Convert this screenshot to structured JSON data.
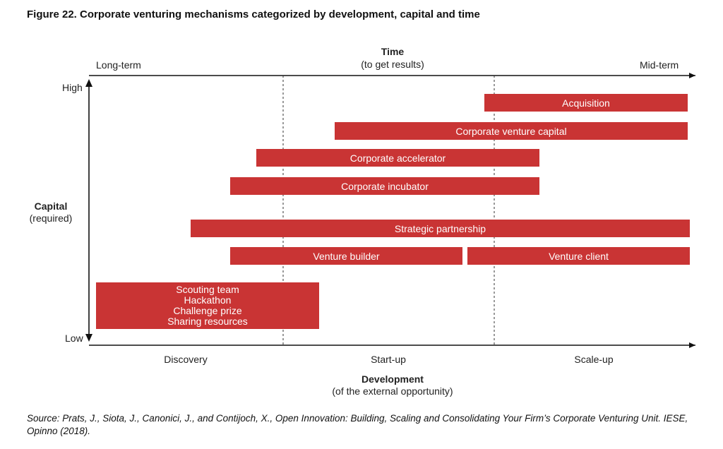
{
  "figure_title": "Figure 22. Corporate venturing mechanisms categorized by development, capital and time",
  "time_axis": {
    "title": "Time",
    "subtitle": "(to get results)",
    "left_label": "Long-term",
    "right_label": "Mid-term"
  },
  "capital_axis": {
    "title": "Capital",
    "subtitle": "(required)",
    "high_label": "High",
    "low_label": "Low"
  },
  "development_axis": {
    "title": "Development",
    "subtitle": "(of the external opportunity)",
    "stages": [
      "Discovery",
      "Start-up",
      "Scale-up"
    ]
  },
  "mechanisms": [
    {
      "label": "Acquisition"
    },
    {
      "label": "Corporate venture capital"
    },
    {
      "label": "Corporate accelerator"
    },
    {
      "label": "Corporate incubator"
    },
    {
      "label": "Strategic partnership"
    },
    {
      "label": "Venture builder"
    },
    {
      "label": "Venture client"
    },
    {
      "lines": [
        "Scouting team",
        "Hackathon",
        "Challenge prize",
        "Sharing resources"
      ]
    }
  ],
  "source_note": "Source: Prats, J., Siota, J., Canonici, J., and Contijoch, X., Open Innovation: Building, Scaling and Consolidating Your Firm’s Corporate Venturing Unit. IESE, Opinno (2018).",
  "colors": {
    "bar": "#c93434",
    "axis": "#111111"
  }
}
